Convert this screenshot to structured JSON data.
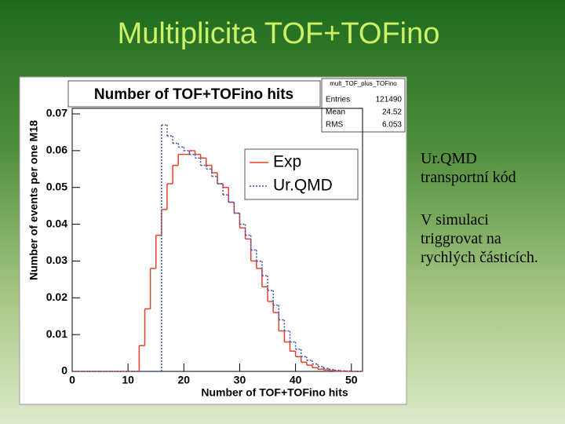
{
  "slide": {
    "title": "Multiplicita TOF+TOFino",
    "bullets": [
      "Ur.QMD transportní kód",
      "V simulaci triggrovat na rychlých částicích."
    ]
  },
  "chart_data": {
    "type": "histogram",
    "title": "Number of TOF+TOFino hits",
    "x_label": "Number of TOF+TOFino hits",
    "y_label": "Number of events per one M18",
    "stats_title": "mult_TOF_plus_TOFino",
    "stats": [
      {
        "label": "Entries",
        "value": 121490
      },
      {
        "label": "Mean",
        "value": 24.52
      },
      {
        "label": "RMS",
        "value": 6.053
      }
    ],
    "bins": [
      0,
      1,
      2,
      3,
      4,
      5,
      6,
      7,
      8,
      9,
      10,
      11,
      12,
      13,
      14,
      15,
      16,
      17,
      18,
      19,
      20,
      21,
      22,
      23,
      24,
      25,
      26,
      27,
      28,
      29,
      30,
      31,
      32,
      33,
      34,
      35,
      36,
      37,
      38,
      39,
      40,
      41,
      42,
      43,
      44,
      45,
      46,
      47,
      48,
      49,
      50,
      51,
      52
    ],
    "series": [
      {
        "name": "Exp",
        "color": "#e8402a",
        "linestyle": "solid",
        "values": [
          0,
          0,
          0,
          0,
          0,
          0,
          0,
          0,
          0,
          0,
          0,
          0,
          0.007,
          0.017,
          0.028,
          0.037,
          0.044,
          0.051,
          0.056,
          0.059,
          0.059,
          0.06,
          0.059,
          0.058,
          0.056,
          0.054,
          0.051,
          0.05,
          0.046,
          0.043,
          0.039,
          0.036,
          0.03,
          0.028,
          0.023,
          0.019,
          0.016,
          0.011,
          0.008,
          0.0055,
          0.004,
          0.0025,
          0.0017,
          0.001,
          0.0006,
          0.0004,
          0.0002,
          0.0001,
          0,
          0,
          0,
          0
        ]
      },
      {
        "name": "Ur.QMD",
        "color": "#4050b0",
        "linestyle": "dotted",
        "values": [
          0,
          0,
          0,
          0,
          0,
          0,
          0,
          0,
          0,
          0,
          0,
          0,
          0,
          0,
          0,
          0,
          0.067,
          0.064,
          0.062,
          0.061,
          0.06,
          0.059,
          0.058,
          0.056,
          0.055,
          0.053,
          0.051,
          0.048,
          0.046,
          0.043,
          0.04,
          0.037,
          0.033,
          0.03,
          0.026,
          0.022,
          0.018,
          0.014,
          0.011,
          0.008,
          0.006,
          0.004,
          0.003,
          0.002,
          0.0013,
          0.0008,
          0.0005,
          0.0003,
          0.0002,
          0.0001,
          0,
          0
        ]
      }
    ],
    "xlim": [
      0,
      52
    ],
    "ylim": [
      0,
      0.0715
    ],
    "xticks": [
      0,
      10,
      20,
      30,
      40,
      50
    ],
    "yticks": [
      0,
      0.01,
      0.02,
      0.03,
      0.04,
      0.05,
      0.06,
      0.07
    ],
    "legend": "upper right"
  }
}
